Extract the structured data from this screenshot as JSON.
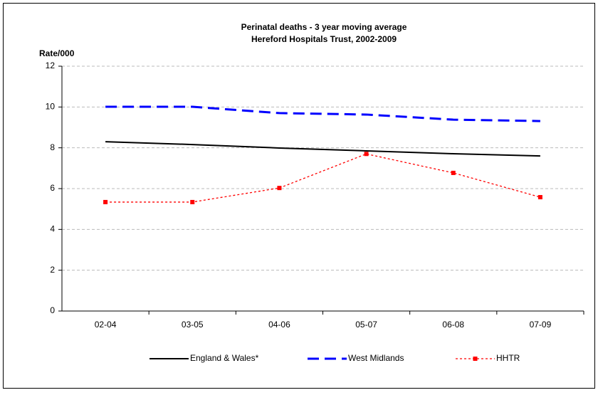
{
  "chart_data": {
    "type": "line",
    "title": [
      "Perinatal deaths - 3 year moving average",
      "Hereford Hospitals Trust, 2002-2009"
    ],
    "y_label": "Rate/000",
    "categories": [
      "02-04",
      "03-05",
      "04-06",
      "05-07",
      "06-08",
      "07-09"
    ],
    "series": [
      {
        "name": "England & Wales*",
        "color": "#000000",
        "style": "solid",
        "marker": false,
        "values": [
          8.3,
          8.16,
          7.99,
          7.85,
          7.71,
          7.6
        ]
      },
      {
        "name": "West Midlands",
        "color": "#0000ff",
        "style": "dashed",
        "marker": false,
        "values": [
          10.01,
          10.01,
          9.7,
          9.63,
          9.38,
          9.31
        ]
      },
      {
        "name": "HHTR",
        "color": "#ff0000",
        "style": "dotted",
        "marker": true,
        "values": [
          5.34,
          5.34,
          6.03,
          7.7,
          6.77,
          5.58
        ]
      }
    ],
    "ylim": [
      0,
      12
    ],
    "yticks": [
      0,
      2,
      4,
      6,
      8,
      10,
      12
    ],
    "grid": true,
    "legend": "bottom"
  }
}
